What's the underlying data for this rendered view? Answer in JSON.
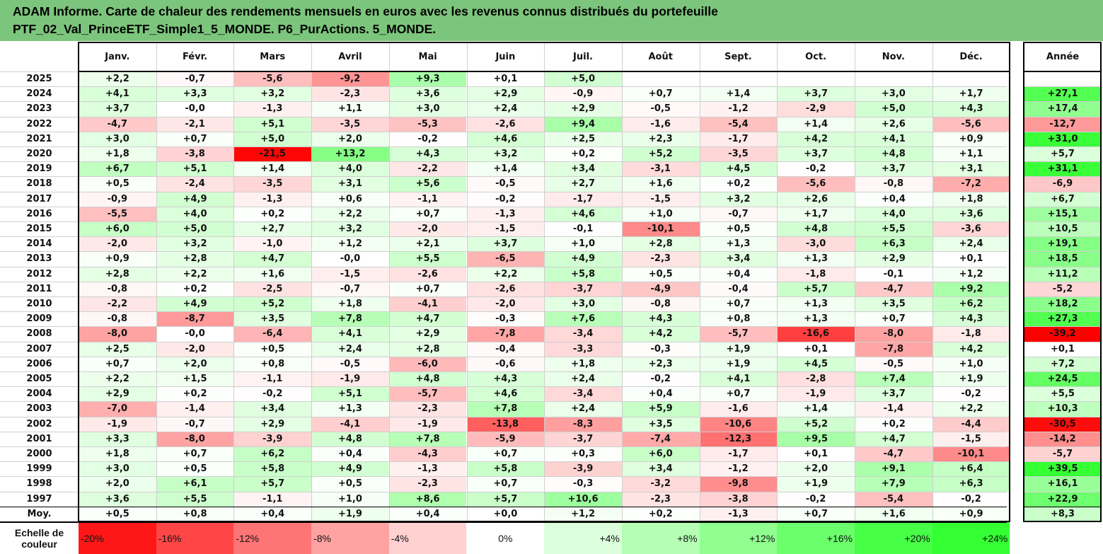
{
  "title": {
    "line1": "ADAM Informe. Carte de chaleur des rendements mensuels en euros avec les revenus connus distribués du portefeuille",
    "line2": "PTF_02_Val_PrinceETF_Simple1_5_MONDE. P6_PurActions. 5_MONDE."
  },
  "colors": {
    "title_bg": "#7cc57c",
    "negative_max": "#ff0000",
    "positive_max": "#33ff33",
    "neutral": "#ffffff"
  },
  "chart_data": {
    "type": "heatmap",
    "months": [
      "Janv.",
      "Févr.",
      "Mars",
      "Avril",
      "Mai",
      "Juin",
      "Juil.",
      "Août",
      "Sept.",
      "Oct.",
      "Nov.",
      "Déc."
    ],
    "annual_label": "Année",
    "average_label": "Moy.",
    "rows": [
      {
        "year": "2025",
        "values": [
          "+2,2",
          "-0,7",
          "-5,6",
          "-9,2",
          "+9,3",
          "+0,1",
          "+5,0",
          "",
          "",
          "",
          "",
          ""
        ],
        "annual": ""
      },
      {
        "year": "2024",
        "values": [
          "+4,1",
          "+3,3",
          "+3,2",
          "-2,3",
          "+3,6",
          "+2,9",
          "-0,9",
          "+0,7",
          "+1,4",
          "+3,7",
          "+3,0",
          "+1,7"
        ],
        "annual": "+27,1"
      },
      {
        "year": "2023",
        "values": [
          "+3,7",
          "-0,0",
          "-1,3",
          "+1,1",
          "+3,0",
          "+2,4",
          "+2,9",
          "-0,5",
          "-1,2",
          "-2,9",
          "+5,0",
          "+4,3"
        ],
        "annual": "+17,4"
      },
      {
        "year": "2022",
        "values": [
          "-4,7",
          "-2,1",
          "+5,1",
          "-3,5",
          "-5,3",
          "-2,6",
          "+9,4",
          "-1,6",
          "-5,4",
          "+1,4",
          "+2,6",
          "-5,6"
        ],
        "annual": "-12,7"
      },
      {
        "year": "2021",
        "values": [
          "+3,0",
          "+0,7",
          "+5,0",
          "+2,0",
          "-0,2",
          "+4,6",
          "+2,5",
          "+2,3",
          "-1,7",
          "+4,2",
          "+4,1",
          "+0,9"
        ],
        "annual": "+31,0"
      },
      {
        "year": "2020",
        "values": [
          "+1,8",
          "-3,8",
          "-21,5",
          "+13,2",
          "+4,3",
          "+3,2",
          "+0,2",
          "+5,2",
          "-3,5",
          "+3,7",
          "+4,8",
          "+1,1"
        ],
        "annual": "+5,7"
      },
      {
        "year": "2019",
        "values": [
          "+6,7",
          "+5,1",
          "+1,4",
          "+4,0",
          "-2,2",
          "+1,4",
          "+3,4",
          "-3,1",
          "+4,5",
          "-0,2",
          "+3,7",
          "+3,1"
        ],
        "annual": "+31,1"
      },
      {
        "year": "2018",
        "values": [
          "+0,5",
          "-2,4",
          "-3,5",
          "+3,1",
          "+5,6",
          "-0,5",
          "+2,7",
          "+1,6",
          "+0,2",
          "-5,6",
          "-0,8",
          "-7,2"
        ],
        "annual": "-6,9"
      },
      {
        "year": "2017",
        "values": [
          "-0,9",
          "+4,9",
          "-1,3",
          "+0,6",
          "-1,1",
          "-0,2",
          "-1,7",
          "-1,5",
          "+3,2",
          "+2,6",
          "+0,4",
          "+1,8"
        ],
        "annual": "+6,7"
      },
      {
        "year": "2016",
        "values": [
          "-5,5",
          "+4,0",
          "+0,2",
          "+2,2",
          "+0,7",
          "-1,3",
          "+4,6",
          "+1,0",
          "-0,7",
          "+1,7",
          "+4,0",
          "+3,6"
        ],
        "annual": "+15,1"
      },
      {
        "year": "2015",
        "values": [
          "+6,0",
          "+5,0",
          "+2,7",
          "+3,2",
          "-2,0",
          "-1,5",
          "-0,1",
          "-10,1",
          "+0,5",
          "+4,8",
          "+5,5",
          "-3,6"
        ],
        "annual": "+10,5"
      },
      {
        "year": "2014",
        "values": [
          "-2,0",
          "+3,2",
          "-1,0",
          "+1,2",
          "+2,1",
          "+3,7",
          "+1,0",
          "+2,8",
          "+1,3",
          "-3,0",
          "+6,3",
          "+2,4"
        ],
        "annual": "+19,1"
      },
      {
        "year": "2013",
        "values": [
          "+0,9",
          "+2,8",
          "+4,7",
          "-0,0",
          "+5,5",
          "-6,5",
          "+4,9",
          "-2,3",
          "+3,4",
          "+1,3",
          "+2,9",
          "+0,1"
        ],
        "annual": "+18,5"
      },
      {
        "year": "2012",
        "values": [
          "+2,8",
          "+2,2",
          "+1,6",
          "-1,5",
          "-2,6",
          "+2,2",
          "+5,8",
          "+0,5",
          "+0,4",
          "-1,8",
          "-0,1",
          "+1,2"
        ],
        "annual": "+11,2"
      },
      {
        "year": "2011",
        "values": [
          "-0,8",
          "+0,2",
          "-2,5",
          "-0,7",
          "+0,7",
          "-2,6",
          "-3,7",
          "-4,9",
          "-0,4",
          "+5,7",
          "-4,7",
          "+9,2"
        ],
        "annual": "-5,2"
      },
      {
        "year": "2010",
        "values": [
          "-2,2",
          "+4,9",
          "+5,2",
          "+1,8",
          "-4,1",
          "-2,0",
          "+3,0",
          "-0,8",
          "+0,7",
          "+1,3",
          "+3,5",
          "+6,2"
        ],
        "annual": "+18,2"
      },
      {
        "year": "2009",
        "values": [
          "-0,8",
          "-8,7",
          "+3,5",
          "+7,8",
          "+4,7",
          "-0,3",
          "+7,6",
          "+4,3",
          "+0,8",
          "+1,3",
          "+0,7",
          "+4,3"
        ],
        "annual": "+27,3"
      },
      {
        "year": "2008",
        "values": [
          "-8,0",
          "-0,0",
          "-6,4",
          "+4,1",
          "+2,9",
          "-7,8",
          "-3,4",
          "+4,2",
          "-5,7",
          "-16,6",
          "-8,0",
          "-1,8"
        ],
        "annual": "-39,2"
      },
      {
        "year": "2007",
        "values": [
          "+2,5",
          "-2,0",
          "+0,5",
          "+2,4",
          "+2,8",
          "-0,4",
          "-3,3",
          "-0,3",
          "+1,9",
          "+0,1",
          "-7,8",
          "+4,2"
        ],
        "annual": "+0,1"
      },
      {
        "year": "2006",
        "values": [
          "+0,7",
          "+2,0",
          "+0,8",
          "-0,5",
          "-6,0",
          "-0,6",
          "+1,8",
          "+2,3",
          "+1,9",
          "+4,5",
          "-0,5",
          "+1,0"
        ],
        "annual": "+7,2"
      },
      {
        "year": "2005",
        "values": [
          "+2,2",
          "+1,5",
          "-1,1",
          "-1,9",
          "+4,8",
          "+4,3",
          "+2,4",
          "-0,2",
          "+4,1",
          "-2,8",
          "+7,4",
          "+1,9"
        ],
        "annual": "+24,5"
      },
      {
        "year": "2004",
        "values": [
          "+2,9",
          "+0,2",
          "-0,2",
          "+5,1",
          "-5,7",
          "+4,6",
          "-3,4",
          "+0,4",
          "+0,7",
          "-1,9",
          "+3,7",
          "-0,2"
        ],
        "annual": "+5,5"
      },
      {
        "year": "2003",
        "values": [
          "-7,0",
          "-1,4",
          "+3,4",
          "+1,3",
          "-2,3",
          "+7,8",
          "+2,4",
          "+5,9",
          "-1,6",
          "+1,4",
          "-1,4",
          "+2,2"
        ],
        "annual": "+10,3"
      },
      {
        "year": "2002",
        "values": [
          "-1,9",
          "-0,7",
          "+2,9",
          "-4,1",
          "-1,9",
          "-13,8",
          "-8,3",
          "+3,5",
          "-10,6",
          "+5,2",
          "+0,2",
          "-4,4"
        ],
        "annual": "-30,5"
      },
      {
        "year": "2001",
        "values": [
          "+3,3",
          "-8,0",
          "-3,9",
          "+4,8",
          "+7,8",
          "-5,9",
          "-3,7",
          "-7,4",
          "-12,3",
          "+9,5",
          "+4,7",
          "-1,5"
        ],
        "annual": "-14,2"
      },
      {
        "year": "2000",
        "values": [
          "+1,8",
          "+0,7",
          "+6,2",
          "+0,4",
          "-4,3",
          "+0,7",
          "+0,3",
          "+6,0",
          "-1,7",
          "+0,1",
          "-4,7",
          "-10,1"
        ],
        "annual": "-5,7"
      },
      {
        "year": "1999",
        "values": [
          "+3,0",
          "+0,5",
          "+5,8",
          "+4,9",
          "-1,3",
          "+5,8",
          "-3,9",
          "+3,4",
          "-1,2",
          "+2,0",
          "+9,1",
          "+6,4"
        ],
        "annual": "+39,5"
      },
      {
        "year": "1998",
        "values": [
          "+2,0",
          "+6,1",
          "+5,7",
          "+0,5",
          "-2,3",
          "+0,7",
          "-0,3",
          "-3,2",
          "-9,8",
          "+1,9",
          "+7,9",
          "+6,3"
        ],
        "annual": "+16,1"
      },
      {
        "year": "1997",
        "values": [
          "+3,6",
          "+5,5",
          "-1,1",
          "+1,0",
          "+8,6",
          "+5,7",
          "+10,6",
          "-2,3",
          "-3,8",
          "-0,2",
          "-5,4",
          "-0,2"
        ],
        "annual": "+22,9"
      }
    ],
    "average": {
      "values": [
        "+0,5",
        "+0,8",
        "+0,4",
        "+1,9",
        "+0,4",
        "+0,0",
        "+1,2",
        "+0,2",
        "-1,3",
        "+0,7",
        "+1,6",
        "+0,9"
      ],
      "annual": "+8,3"
    },
    "color_scale": {
      "label_line1": "Echelle de",
      "label_line2": "couleur",
      "steps": [
        "-20%",
        "-16%",
        "-12%",
        "-8%",
        "-4%",
        "0%",
        "+4%",
        "+8%",
        "+12%",
        "+16%",
        "+20%",
        "+24%"
      ],
      "step_values": [
        -20,
        -16,
        -12,
        -8,
        -4,
        0,
        4,
        8,
        12,
        16,
        20,
        24
      ]
    }
  }
}
